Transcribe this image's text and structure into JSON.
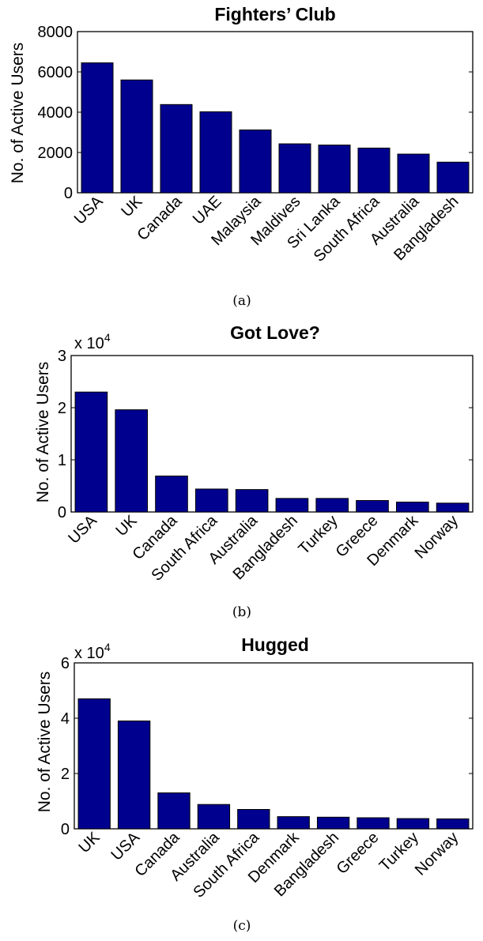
{
  "chart_data": [
    {
      "type": "bar",
      "title": "Fighters’ Club",
      "ylabel": "No. of Active Users",
      "multiplier_label": "",
      "ylim": [
        0,
        8000
      ],
      "ytick_labels": [
        "0",
        "2000",
        "4000",
        "6000",
        "8000"
      ],
      "caption": "(a)",
      "bar_color": "#00008f",
      "grid": false,
      "categories": [
        "USA",
        "UK",
        "Canada",
        "UAE",
        "Malaysia",
        "Maldives",
        "Sri Lanka",
        "South Africa",
        "Australia",
        "Bangladesh"
      ],
      "values": [
        6450,
        5600,
        4380,
        4020,
        3120,
        2430,
        2370,
        2220,
        1920,
        1520
      ]
    },
    {
      "type": "bar",
      "title": "Got Love?",
      "ylabel": "No. of Active Users",
      "multiplier_label": "x 10^4",
      "ylim": [
        0,
        3
      ],
      "ytick_labels": [
        "0",
        "1",
        "2",
        "3"
      ],
      "caption": "(b)",
      "bar_color": "#00008f",
      "grid": false,
      "categories": [
        "USA",
        "UK",
        "Canada",
        "South Africa",
        "Australia",
        "Bangladesh",
        "Turkey",
        "Greece",
        "Denmark",
        "Norway"
      ],
      "values": [
        2.3,
        1.96,
        0.69,
        0.44,
        0.43,
        0.26,
        0.26,
        0.22,
        0.19,
        0.17
      ]
    },
    {
      "type": "bar",
      "title": "Hugged",
      "ylabel": "No. of Active Users",
      "multiplier_label": "x 10^4",
      "ylim": [
        0,
        6
      ],
      "ytick_labels": [
        "0",
        "2",
        "4",
        "6"
      ],
      "caption": "(c)",
      "bar_color": "#00008f",
      "grid": false,
      "categories": [
        "UK",
        "USA",
        "Canada",
        "Australia",
        "South Africa",
        "Denmark",
        "Bangladesh",
        "Greece",
        "Turkey",
        "Norway"
      ],
      "values": [
        4.7,
        3.9,
        1.3,
        0.88,
        0.7,
        0.44,
        0.42,
        0.4,
        0.37,
        0.36
      ]
    }
  ]
}
